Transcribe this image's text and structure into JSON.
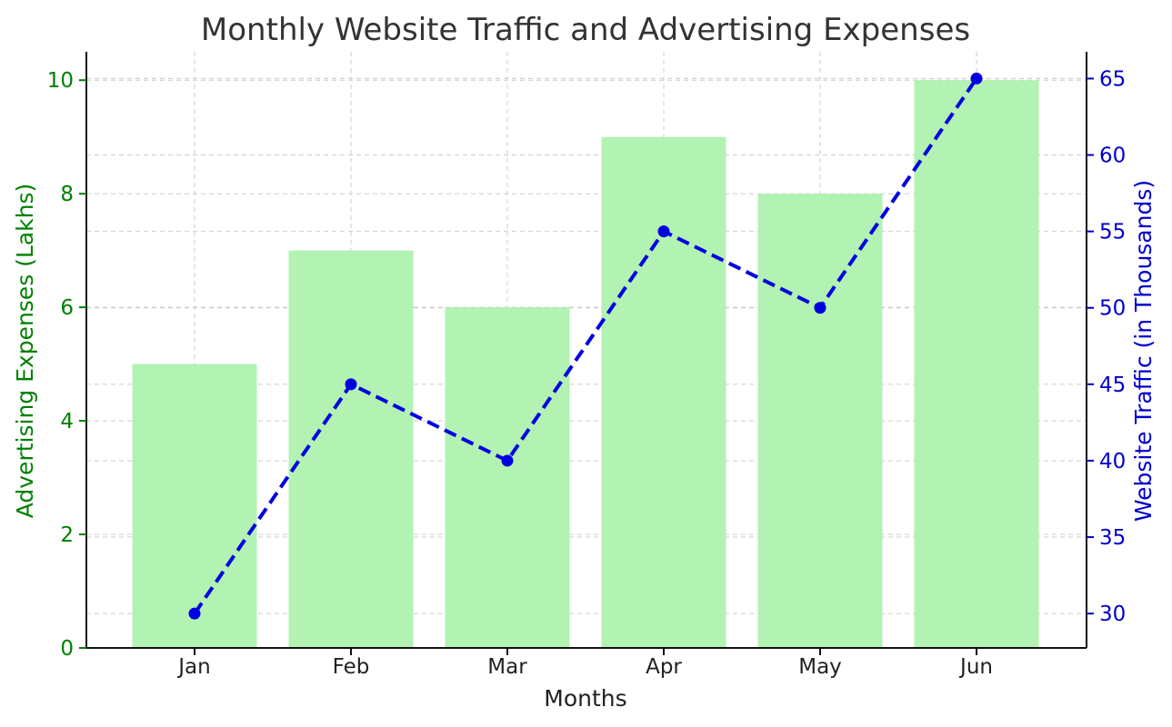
{
  "chart_data": {
    "type": "bar",
    "title": "Monthly Website Traffic and Advertising Expenses",
    "xlabel": "Months",
    "categories": [
      "Jan",
      "Feb",
      "Mar",
      "Apr",
      "May",
      "Jun"
    ],
    "grid": true,
    "series": [
      {
        "type": "bar",
        "axis": "left",
        "values": [
          5,
          7,
          6,
          9,
          8,
          10
        ],
        "color": "#b2f2b2"
      },
      {
        "type": "line",
        "axis": "right",
        "values": [
          30,
          45,
          40,
          55,
          50,
          65
        ],
        "color": "#0000e0",
        "line_style": "dashed",
        "marker": "circle"
      }
    ],
    "y_left": {
      "label": "Advertising Expenses (Lakhs)",
      "ylim": [
        0,
        10.5
      ],
      "ticks": [
        0,
        2,
        4,
        6,
        8,
        10
      ],
      "color": "#008000"
    },
    "y_right": {
      "label": "Website Traffic (in Thousands)",
      "ylim": [
        27.75,
        66.75
      ],
      "ticks": [
        30,
        35,
        40,
        45,
        50,
        55,
        60,
        65
      ],
      "color": "#0000cc"
    }
  }
}
